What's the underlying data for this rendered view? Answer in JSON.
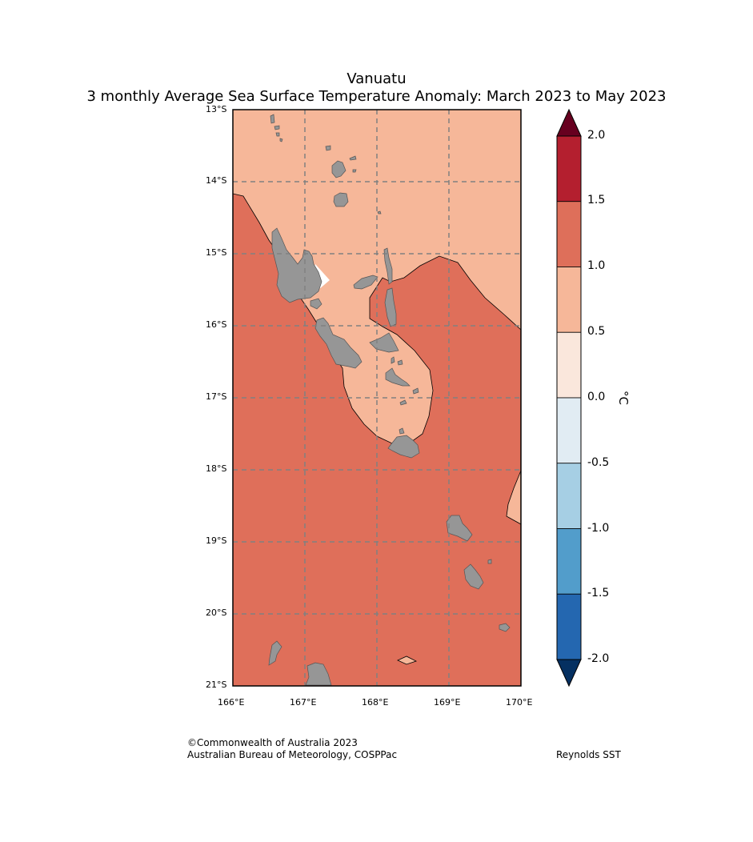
{
  "title": {
    "line1": "Vanuatu",
    "line2": "3 monthly Average Sea Surface Temperature Anomaly: March 2023 to May 2023"
  },
  "map": {
    "lat_labels": [
      "13°S",
      "14°S",
      "15°S",
      "16°S",
      "17°S",
      "18°S",
      "19°S",
      "20°S",
      "21°S"
    ],
    "lon_labels": [
      "166°E",
      "167°E",
      "168°E",
      "169°E",
      "170°E"
    ],
    "colors": {
      "band_0_5_to_1_0": "#f6b799",
      "band_1_0_to_1_5": "#df6f5a",
      "land": "#969696",
      "gridline": "#808080"
    }
  },
  "colorbar": {
    "unit": "°C",
    "ticks": [
      "2.0",
      "1.5",
      "1.0",
      "0.5",
      "0.0",
      "-0.5",
      "-1.0",
      "-1.5",
      "-2.0"
    ],
    "colors": [
      "#b41f2f",
      "#de6f5a",
      "#f6b799",
      "#fae7dc",
      "#e1ecf3",
      "#a6cfe4",
      "#529dcb",
      "#2467b0"
    ],
    "over_color": "#67001f",
    "under_color": "#053061"
  },
  "credits": {
    "line1": "©Commonwealth of Australia 2023",
    "line2": "Australian Bureau of Meteorology, COSPPac",
    "dataset": "Reynolds SST"
  }
}
